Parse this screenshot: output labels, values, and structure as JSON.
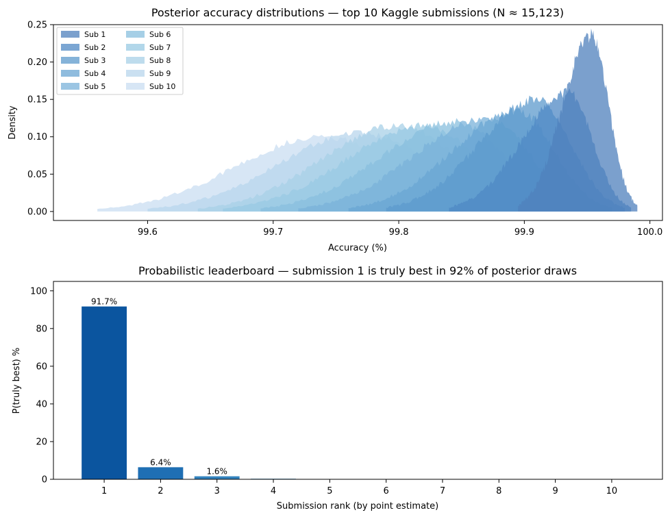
{
  "chart_data": [
    {
      "type": "area",
      "title": "Posterior accuracy distributions — top 10 Kaggle submissions (N ≈ 15,123)",
      "xlabel": "Accuracy (%)",
      "ylabel": "Density",
      "xlim": [
        99.525,
        100.01
      ],
      "ylim": [
        -0.012,
        0.25
      ],
      "xticks": [
        "99.6",
        "99.7",
        "99.8",
        "99.9",
        "100.0"
      ],
      "yticks": [
        "0.00",
        "0.05",
        "0.10",
        "0.15",
        "0.20",
        "0.25"
      ],
      "legend": "top-left",
      "grid": false,
      "series": [
        {
          "name": "Sub 1",
          "peak_x": 99.953,
          "peak_y": 0.236,
          "support": [
            99.895,
            99.99
          ],
          "color": "#4f80bc"
        },
        {
          "name": "Sub 2",
          "peak_x": 99.935,
          "peak_y": 0.16,
          "support": [
            99.84,
            99.985
          ],
          "color": "#4f88c4"
        },
        {
          "name": "Sub 3",
          "peak_x": 99.91,
          "peak_y": 0.15,
          "support": [
            99.79,
            99.98
          ],
          "color": "#5c99cc"
        },
        {
          "name": "Sub 4",
          "peak_x": 99.895,
          "peak_y": 0.135,
          "support": [
            99.76,
            99.97
          ],
          "color": "#6aa5d3"
        },
        {
          "name": "Sub 5",
          "peak_x": 99.87,
          "peak_y": 0.125,
          "support": [
            99.72,
            99.96
          ],
          "color": "#79b2da"
        },
        {
          "name": "Sub 6",
          "peak_x": 99.845,
          "peak_y": 0.12,
          "support": [
            99.69,
            99.95
          ],
          "color": "#88bfde"
        },
        {
          "name": "Sub 7",
          "peak_x": 99.82,
          "peak_y": 0.115,
          "support": [
            99.66,
            99.94
          ],
          "color": "#98c9e3"
        },
        {
          "name": "Sub 8",
          "peak_x": 99.8,
          "peak_y": 0.115,
          "support": [
            99.64,
            99.93
          ],
          "color": "#a8d0e7"
        },
        {
          "name": "Sub 9",
          "peak_x": 99.77,
          "peak_y": 0.105,
          "support": [
            99.6,
            99.92
          ],
          "color": "#b8d6ec"
        },
        {
          "name": "Sub 10",
          "peak_x": 99.74,
          "peak_y": 0.1,
          "support": [
            99.56,
            99.9
          ],
          "color": "#c9def1"
        }
      ]
    },
    {
      "type": "bar",
      "title": "Probabilistic leaderboard — submission 1 is truly best in 92% of posterior draws",
      "xlabel": "Submission rank (by point estimate)",
      "ylabel": "P(truly best)  %",
      "categories": [
        "1",
        "2",
        "3",
        "4",
        "5",
        "6",
        "7",
        "8",
        "9",
        "10"
      ],
      "values": [
        91.7,
        6.4,
        1.6,
        0.3,
        0,
        0,
        0,
        0,
        0,
        0
      ],
      "data_labels": [
        "91.7%",
        "6.4%",
        "1.6%",
        "",
        "",
        "",
        "",
        "",
        "",
        ""
      ],
      "yticks": [
        "0",
        "20",
        "40",
        "60",
        "80",
        "100"
      ],
      "ylim": [
        0,
        105
      ],
      "colors": [
        "#0b559f",
        "#1f6fb4",
        "#3383be",
        "#4a95c8",
        "#4a95c8",
        "#4a95c8",
        "#4a95c8",
        "#4a95c8",
        "#4a95c8",
        "#4a95c8"
      ],
      "grid": false
    }
  ]
}
